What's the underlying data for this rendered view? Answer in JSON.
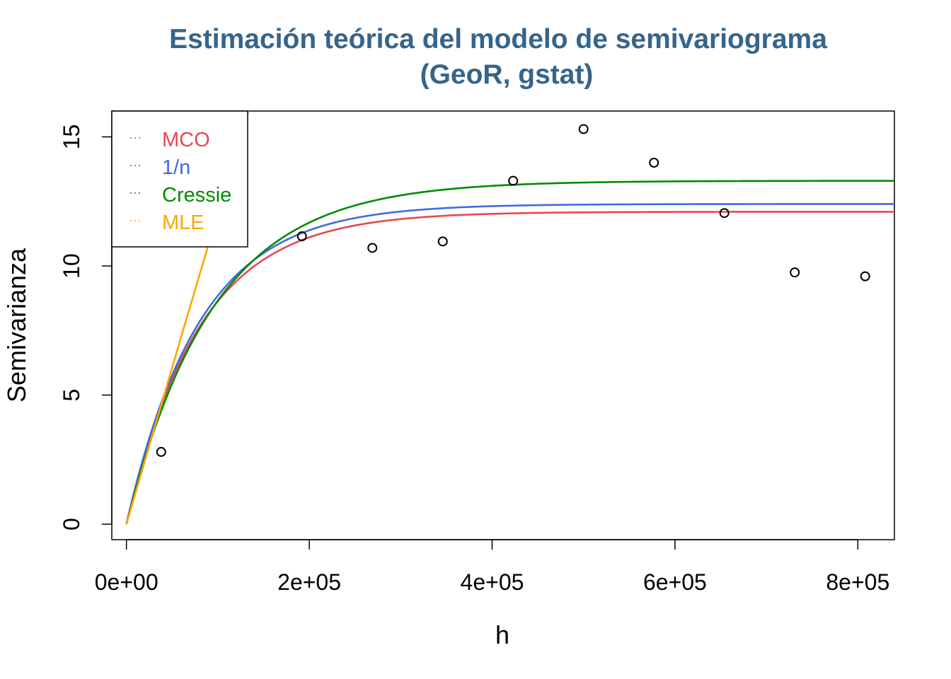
{
  "chart_data": {
    "type": "scatter",
    "title_line1": "Estimación teórica del modelo de semivariograma",
    "title_line2": "(GeoR, gstat)",
    "xlabel": "h",
    "ylabel": "Semivarianza",
    "xlim": [
      -16000,
      840000
    ],
    "ylim": [
      -0.6,
      16.0
    ],
    "x_ticks": [
      0,
      200000,
      400000,
      600000,
      800000
    ],
    "x_tick_labels": [
      "0e+00",
      "2e+05",
      "4e+05",
      "6e+05",
      "8e+05"
    ],
    "y_ticks": [
      0,
      5,
      10,
      15
    ],
    "y_tick_labels": [
      "0",
      "5",
      "10",
      "15"
    ],
    "points": [
      {
        "x": 38000,
        "y": 2.8
      },
      {
        "x": 192000,
        "y": 11.15
      },
      {
        "x": 269000,
        "y": 10.7
      },
      {
        "x": 346000,
        "y": 10.95
      },
      {
        "x": 423000,
        "y": 13.3
      },
      {
        "x": 500000,
        "y": 15.3
      },
      {
        "x": 577000,
        "y": 14.0
      },
      {
        "x": 654000,
        "y": 12.05
      },
      {
        "x": 731000,
        "y": 9.75
      },
      {
        "x": 808000,
        "y": 9.6
      }
    ],
    "series": [
      {
        "name": "MCO",
        "color": "#E8474E",
        "model": "exponential",
        "nugget": 0,
        "sill": 12.1,
        "range": 80000
      },
      {
        "name": "1/n",
        "color": "#4169E1",
        "model": "exponential",
        "nugget": 0,
        "sill": 12.4,
        "range": 80000
      },
      {
        "name": "Cressie",
        "color": "#008B00",
        "model": "exponential",
        "nugget": 0,
        "sill": 13.3,
        "range": 95000
      },
      {
        "name": "MLE",
        "color": "#FFA500",
        "model": "exponential",
        "nugget": 0,
        "sill": 500,
        "range": 4100000
      }
    ],
    "legend_position": "top-left",
    "grid": false
  }
}
